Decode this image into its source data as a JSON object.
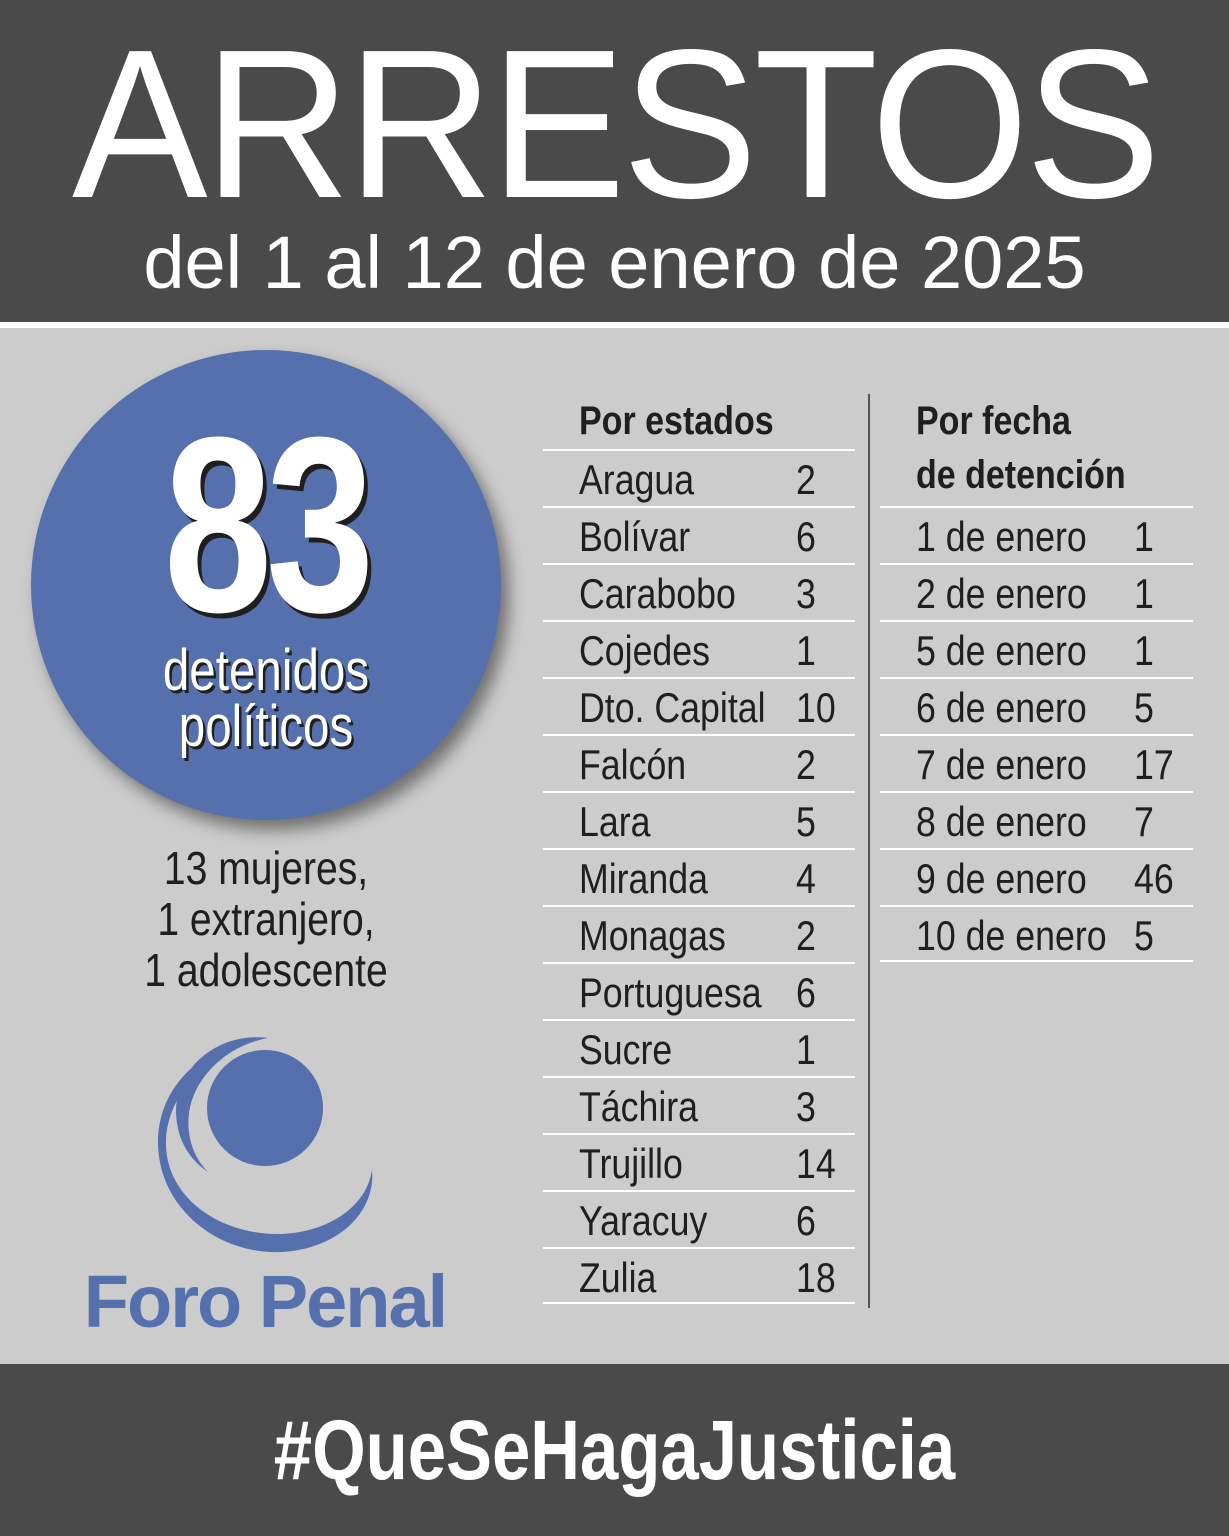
{
  "header": {
    "title": "ARRESTOS",
    "subtitle": "del 1 al 12 de enero de 2025"
  },
  "summary": {
    "total": "83",
    "label_line1": "detenidos",
    "label_line2": "políticos",
    "breakdown_line1": "13 mujeres,",
    "breakdown_line2": "1 extranjero,",
    "breakdown_line3": "1 adolescente"
  },
  "by_state": {
    "heading": "Por estados",
    "rows": [
      {
        "name": "Aragua",
        "value": "2"
      },
      {
        "name": "Bolívar",
        "value": "6"
      },
      {
        "name": "Carabobo",
        "value": "3"
      },
      {
        "name": "Cojedes",
        "value": "1"
      },
      {
        "name": "Dto. Capital",
        "value": "10"
      },
      {
        "name": "Falcón",
        "value": "2"
      },
      {
        "name": "Lara",
        "value": "5"
      },
      {
        "name": "Miranda",
        "value": "4"
      },
      {
        "name": "Monagas",
        "value": "2"
      },
      {
        "name": "Portuguesa",
        "value": "6"
      },
      {
        "name": "Sucre",
        "value": "1"
      },
      {
        "name": "Táchira",
        "value": "3"
      },
      {
        "name": "Trujillo",
        "value": "14"
      },
      {
        "name": "Yaracuy",
        "value": "6"
      },
      {
        "name": "Zulia",
        "value": "18"
      }
    ]
  },
  "by_date": {
    "heading_line1": "Por fecha",
    "heading_line2": "de detención",
    "rows": [
      {
        "name": "1 de enero",
        "value": "1"
      },
      {
        "name": "2 de enero",
        "value": "1"
      },
      {
        "name": "5 de enero",
        "value": "1"
      },
      {
        "name": "6 de enero",
        "value": "5"
      },
      {
        "name": "7 de enero",
        "value": "17"
      },
      {
        "name": "8 de enero",
        "value": "7"
      },
      {
        "name": "9 de enero",
        "value": "46"
      },
      {
        "name": "10 de enero",
        "value": "5"
      }
    ]
  },
  "logo": {
    "text": "Foro Penal",
    "icon": "foro-penal-logo-icon"
  },
  "footer": {
    "hashtag": "#QueSeHagaJusticia"
  },
  "colors": {
    "dark_band": "#4a4a4a",
    "background": "#cccccc",
    "accent_blue": "#5570ad",
    "text_dark": "#1f1f1f",
    "white": "#ffffff"
  }
}
